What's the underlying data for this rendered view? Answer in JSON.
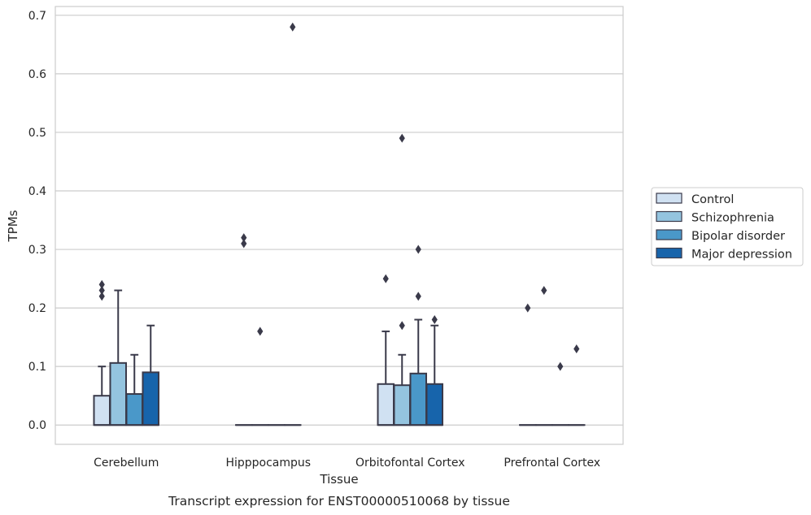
{
  "chart_data": {
    "type": "box",
    "xlabel": "Tissue",
    "ylabel": "TPMs",
    "caption": "Transcript expression for ENST00000510068 by tissue",
    "ylim": [
      -0.033,
      0.715
    ],
    "yticks": [
      "0.0",
      "0.1",
      "0.2",
      "0.3",
      "0.4",
      "0.5",
      "0.6",
      "0.7"
    ],
    "ytick_values": [
      0.0,
      0.1,
      0.2,
      0.3,
      0.4,
      0.5,
      0.6,
      0.7
    ],
    "grid": true,
    "legend_position": "right",
    "categories": [
      "Cerebellum",
      "Hipppocampus",
      "Orbitofontal Cortex",
      "Prefrontal Cortex"
    ],
    "series": [
      {
        "name": "Control",
        "color": "#d0e1f2",
        "boxes": [
          {
            "q1": 0.0,
            "median": 0.0,
            "q3": 0.05,
            "whisker_low": 0.0,
            "whisker_high": 0.1,
            "outliers": [
              0.22,
              0.23,
              0.24
            ]
          },
          {
            "q1": 0.0,
            "median": 0.0,
            "q3": 0.0,
            "whisker_low": 0.0,
            "whisker_high": 0.0,
            "outliers": [
              0.31,
              0.32
            ]
          },
          {
            "q1": 0.0,
            "median": 0.0,
            "q3": 0.07,
            "whisker_low": 0.0,
            "whisker_high": 0.16,
            "outliers": [
              0.25
            ]
          },
          {
            "q1": 0.0,
            "median": 0.0,
            "q3": 0.0,
            "whisker_low": 0.0,
            "whisker_high": 0.0,
            "outliers": [
              0.2
            ]
          }
        ]
      },
      {
        "name": "Schizophrenia",
        "color": "#94c4df",
        "boxes": [
          {
            "q1": 0.0,
            "median": 0.0,
            "q3": 0.106,
            "whisker_low": 0.0,
            "whisker_high": 0.23,
            "outliers": []
          },
          {
            "q1": 0.0,
            "median": 0.0,
            "q3": 0.0,
            "whisker_low": 0.0,
            "whisker_high": 0.0,
            "outliers": [
              0.16
            ]
          },
          {
            "q1": 0.0,
            "median": 0.0,
            "q3": 0.068,
            "whisker_low": 0.0,
            "whisker_high": 0.12,
            "outliers": [
              0.17,
              0.49
            ]
          },
          {
            "q1": 0.0,
            "median": 0.0,
            "q3": 0.0,
            "whisker_low": 0.0,
            "whisker_high": 0.0,
            "outliers": [
              0.23
            ]
          }
        ]
      },
      {
        "name": "Bipolar disorder",
        "color": "#4a98c9",
        "boxes": [
          {
            "q1": 0.0,
            "median": 0.0,
            "q3": 0.053,
            "whisker_low": 0.0,
            "whisker_high": 0.12,
            "outliers": []
          },
          {
            "q1": 0.0,
            "median": 0.0,
            "q3": 0.0,
            "whisker_low": 0.0,
            "whisker_high": 0.0,
            "outliers": []
          },
          {
            "q1": 0.0,
            "median": 0.0,
            "q3": 0.088,
            "whisker_low": 0.0,
            "whisker_high": 0.18,
            "outliers": [
              0.22,
              0.3
            ]
          },
          {
            "q1": 0.0,
            "median": 0.0,
            "q3": 0.0,
            "whisker_low": 0.0,
            "whisker_high": 0.0,
            "outliers": [
              0.1
            ]
          }
        ]
      },
      {
        "name": "Major depression",
        "color": "#1764ab",
        "boxes": [
          {
            "q1": 0.0,
            "median": 0.0,
            "q3": 0.09,
            "whisker_low": 0.0,
            "whisker_high": 0.17,
            "outliers": []
          },
          {
            "q1": 0.0,
            "median": 0.0,
            "q3": 0.0,
            "whisker_low": 0.0,
            "whisker_high": 0.0,
            "outliers": [
              0.68
            ]
          },
          {
            "q1": 0.0,
            "median": 0.0,
            "q3": 0.07,
            "whisker_low": 0.0,
            "whisker_high": 0.17,
            "outliers": [
              0.18
            ]
          },
          {
            "q1": 0.0,
            "median": 0.0,
            "q3": 0.0,
            "whisker_low": 0.0,
            "whisker_high": 0.0,
            "outliers": [
              0.13
            ]
          }
        ]
      }
    ]
  }
}
